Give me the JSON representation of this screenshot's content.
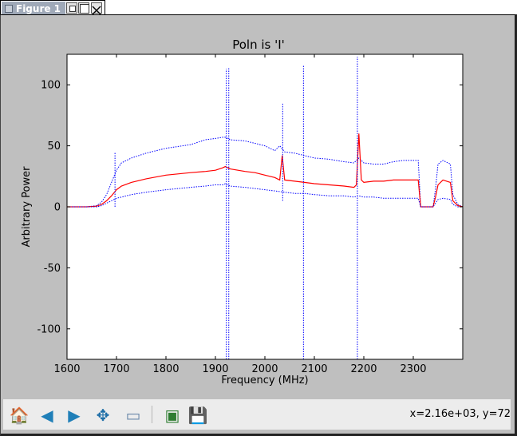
{
  "window": {
    "title": "Figure 1"
  },
  "plot": {
    "title": "Poln is 'I'"
  },
  "toolbar": {
    "buttons": [
      {
        "name": "home-icon",
        "glyph": "🏠"
      },
      {
        "name": "back-icon",
        "glyph": "◀"
      },
      {
        "name": "forward-icon",
        "glyph": "▶"
      },
      {
        "name": "pan-icon",
        "glyph": "✥"
      },
      {
        "name": "zoom-icon",
        "glyph": "▭"
      },
      {
        "name": "subplots-icon",
        "glyph": "▣"
      },
      {
        "name": "save-icon",
        "glyph": "💾"
      }
    ],
    "coords": "x=2.16e+03, y=72"
  },
  "chart_data": {
    "type": "line",
    "title": "Poln is 'I'",
    "xlabel": "Frequency (MHz)",
    "ylabel": "Arbitrary Power",
    "xlim": [
      1600,
      2400
    ],
    "ylim": [
      -125,
      125
    ],
    "xticks": [
      1600,
      1700,
      1800,
      1900,
      2000,
      2100,
      2200,
      2300
    ],
    "yticks": [
      100,
      50,
      0,
      -50,
      -100
    ],
    "grid": false,
    "series": [
      {
        "color": "#0000ff",
        "style": "dotted",
        "x": [
          1600,
          1640,
          1660,
          1670,
          1680,
          1690,
          1700,
          1710,
          1730,
          1760,
          1800,
          1850,
          1880,
          1900,
          1915,
          1920,
          1925,
          1930,
          1960,
          1980,
          2000,
          2020,
          2030,
          2040,
          2060,
          2080,
          2100,
          2130,
          2160,
          2180,
          2185,
          2190,
          2200,
          2220,
          2240,
          2260,
          2280,
          2300,
          2310,
          2315,
          2320,
          2335,
          2340,
          2345,
          2350,
          2360,
          2375,
          2380,
          2390,
          2400
        ],
        "y": [
          0,
          0,
          1,
          4,
          10,
          20,
          30,
          36,
          40,
          44,
          48,
          51,
          55,
          56,
          57,
          57,
          56,
          55,
          54,
          52,
          50,
          46,
          50,
          45,
          44,
          42,
          40,
          39,
          37,
          36,
          38,
          40,
          36,
          35,
          35,
          37,
          38,
          38,
          38,
          0,
          0,
          0,
          0,
          15,
          35,
          38,
          35,
          10,
          2,
          0
        ]
      },
      {
        "color": "#ff0000",
        "style": "solid",
        "x": [
          1600,
          1640,
          1660,
          1670,
          1680,
          1690,
          1700,
          1710,
          1730,
          1760,
          1800,
          1850,
          1880,
          1900,
          1915,
          1920,
          1925,
          1930,
          1960,
          1980,
          2000,
          2020,
          2030,
          2035,
          2040,
          2060,
          2080,
          2100,
          2130,
          2160,
          2180,
          2185,
          2190,
          2195,
          2200,
          2220,
          2240,
          2260,
          2280,
          2300,
          2310,
          2315,
          2320,
          2335,
          2340,
          2345,
          2350,
          2360,
          2375,
          2380,
          2390,
          2400
        ],
        "y": [
          0,
          0,
          0.5,
          2,
          5,
          9,
          14,
          17,
          20,
          23,
          26,
          28,
          29,
          30,
          32,
          33,
          32,
          31,
          29,
          28,
          26,
          24,
          22,
          42,
          22,
          21,
          20,
          19,
          18,
          17,
          16,
          18,
          60,
          22,
          20,
          21,
          21,
          22,
          22,
          22,
          22,
          0,
          0,
          0,
          0,
          8,
          18,
          22,
          20,
          5,
          1,
          0
        ]
      },
      {
        "color": "#0000ff",
        "style": "dotted",
        "x": [
          1600,
          1640,
          1660,
          1670,
          1680,
          1690,
          1700,
          1710,
          1730,
          1760,
          1800,
          1850,
          1880,
          1900,
          1915,
          1920,
          1925,
          1930,
          1960,
          1980,
          2000,
          2020,
          2040,
          2060,
          2080,
          2100,
          2130,
          2160,
          2180,
          2190,
          2200,
          2220,
          2240,
          2260,
          2280,
          2300,
          2310,
          2315,
          2320,
          2335,
          2340,
          2345,
          2350,
          2360,
          2375,
          2380,
          2390,
          2400
        ],
        "y": [
          0,
          0,
          0,
          1,
          3,
          5,
          7,
          8,
          10,
          12,
          14,
          16,
          17,
          18,
          18,
          19,
          18,
          17,
          16,
          15,
          14,
          13,
          12,
          11,
          11,
          10,
          9,
          9,
          8,
          9,
          8,
          8,
          7,
          7,
          7,
          7,
          7,
          0,
          0,
          0,
          0,
          3,
          6,
          7,
          6,
          2,
          0,
          0
        ]
      }
    ],
    "spikes": [
      {
        "x": 1922,
        "ymin": -125,
        "ymax": 113,
        "color": "#0000ff",
        "style": "dotted"
      },
      {
        "x": 1927,
        "ymin": -125,
        "ymax": 114,
        "color": "#0000ff",
        "style": "dotted"
      },
      {
        "x": 2036,
        "ymin": 5,
        "ymax": 85,
        "color": "#0000ff",
        "style": "dotted"
      },
      {
        "x": 2078,
        "ymin": -125,
        "ymax": 116,
        "color": "#0000ff",
        "style": "dotted"
      },
      {
        "x": 2187,
        "ymin": -125,
        "ymax": 123,
        "color": "#0000ff",
        "style": "dotted"
      },
      {
        "x": 1697,
        "ymin": 0,
        "ymax": 45,
        "color": "#0000ff",
        "style": "dotted"
      }
    ]
  }
}
